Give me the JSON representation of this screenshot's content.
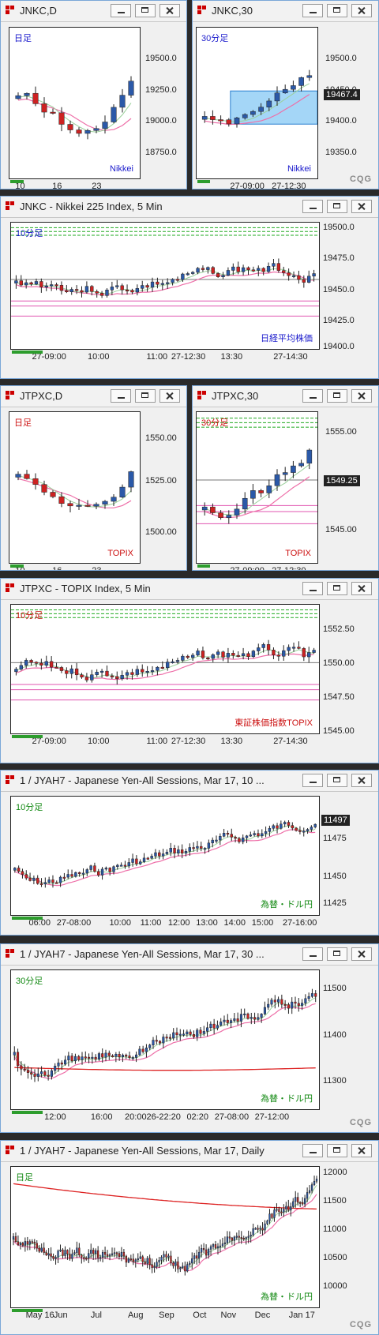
{
  "windows": [
    {
      "id": "w1",
      "title": "JNKC,D",
      "label_top": "日足",
      "label_bottom": "Nikkei",
      "label_top_color": "#1a1acc",
      "label_bottom_color": "#1a1acc",
      "y_ticks": [
        "19500.0",
        "19250.0",
        "19000.0",
        "18750.0"
      ],
      "x_ticks": [
        "10",
        "16",
        "23"
      ]
    },
    {
      "id": "w2",
      "title": "JNKC,30",
      "label_top": "30分足",
      "label_bottom": "Nikkei",
      "label_top_color": "#1a1acc",
      "label_bottom_color": "#1a1acc",
      "price_tag": "19467.4",
      "y_ticks": [
        "19500.0",
        "19450.0",
        "19400.0",
        "19350.0"
      ],
      "x_ticks": [
        "27-09:00",
        "27-12:30"
      ],
      "logo": "CQG"
    },
    {
      "id": "w3",
      "title": "JNKC - Nikkei 225 Index, 5 Min",
      "label_top": "10分足",
      "label_bottom": "日経平均株価",
      "label_top_color": "#1a1acc",
      "label_bottom_color": "#1a1acc",
      "y_ticks": [
        "19500.0",
        "19475.0",
        "19450.0",
        "19425.0",
        "19400.0"
      ],
      "x_ticks": [
        "27-09:00",
        "10:00",
        "11:00",
        "27-12:30",
        "13:30",
        "27-14:30"
      ]
    },
    {
      "id": "w4",
      "title": "JTPXC,D",
      "label_top": "日足",
      "label_bottom": "TOPIX",
      "label_top_color": "#cc1111",
      "label_bottom_color": "#cc1111",
      "y_ticks": [
        "1550.00",
        "1525.00",
        "1500.00"
      ],
      "x_ticks": [
        "10",
        "16",
        "23"
      ]
    },
    {
      "id": "w5",
      "title": "JTPXC,30",
      "label_top": "30分足",
      "label_bottom": "TOPIX",
      "label_top_color": "#cc1111",
      "label_bottom_color": "#cc1111",
      "price_tag": "1549.25",
      "y_ticks": [
        "1555.00",
        "1550.00",
        "1545.00"
      ],
      "x_ticks": [
        "27-09:00",
        "27-12:30"
      ]
    },
    {
      "id": "w6",
      "title": "JTPXC - TOPIX Index, 5 Min",
      "label_top": "10分足",
      "label_bottom": "東証株価指数TOPIX",
      "label_top_color": "#cc1111",
      "label_bottom_color": "#cc1111",
      "y_ticks": [
        "1552.50",
        "1550.00",
        "1547.50",
        "1545.00"
      ],
      "x_ticks": [
        "27-09:00",
        "10:00",
        "11:00",
        "27-12:30",
        "13:30",
        "27-14:30"
      ]
    },
    {
      "id": "w7",
      "title": "1 / JYAH7 - Japanese Yen-All Sessions, Mar 17, 10 ...",
      "label_top": "10分足",
      "label_bottom": "為替・ドル円",
      "label_top_color": "#118811",
      "label_bottom_color": "#118811",
      "price_tag": "11497",
      "y_ticks": [
        "11475",
        "11450",
        "11425"
      ],
      "x_ticks": [
        "06:00",
        "27-08:00",
        "10:00",
        "11:00",
        "12:00",
        "13:00",
        "14:00",
        "15:00",
        "27-16:00"
      ]
    },
    {
      "id": "w8",
      "title": "1 / JYAH7 - Japanese Yen-All Sessions, Mar 17, 30 ...",
      "label_top": "30分足",
      "label_bottom": "為替・ドル円",
      "label_top_color": "#118811",
      "label_bottom_color": "#118811",
      "y_ticks": [
        "11500",
        "11400",
        "11300"
      ],
      "x_ticks": [
        "12:00",
        "16:00",
        "20:00",
        "26-22:20",
        "02:20",
        "27-08:00",
        "27-12:00"
      ],
      "logo": "CQG"
    },
    {
      "id": "w9",
      "title": "1 / JYAH7 - Japanese Yen-All Sessions, Mar 17, Daily",
      "label_top": "日足",
      "label_bottom": "為替・ドル円",
      "label_top_color": "#118811",
      "label_bottom_color": "#118811",
      "y_ticks": [
        "12000",
        "11500",
        "11000",
        "10500",
        "10000"
      ],
      "x_ticks": [
        "May 16",
        "Jun",
        "Jul",
        "Aug",
        "Sep",
        "Oct",
        "Nov",
        "Dec",
        "Jan 17"
      ],
      "logo": "CQG"
    }
  ]
}
